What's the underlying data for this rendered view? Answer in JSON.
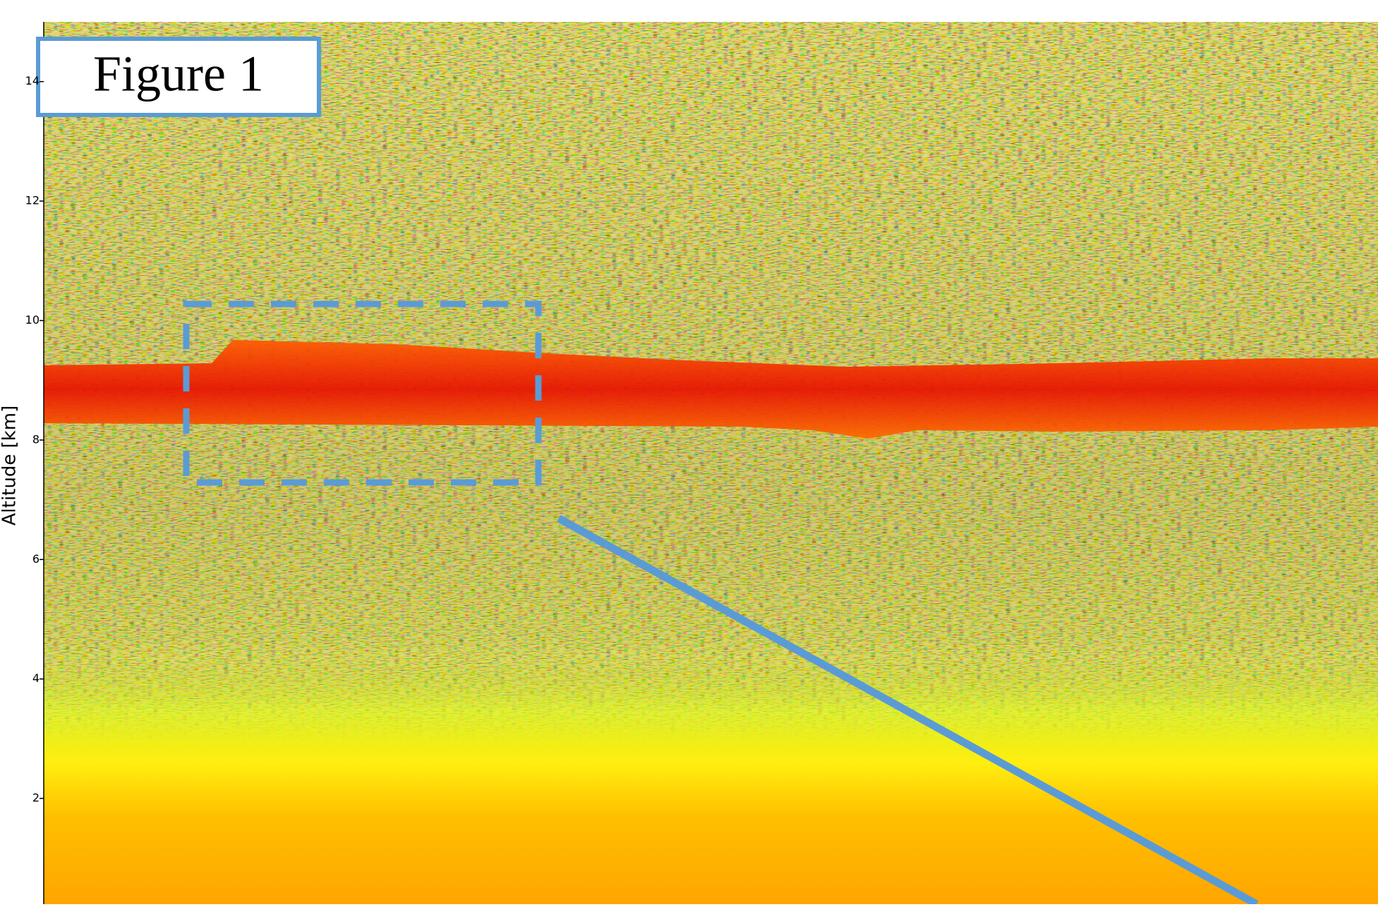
{
  "chart_data": {
    "type": "heatmap",
    "annotation": "Figure 1",
    "y_label": "Altitude [km]",
    "ylim": [
      0.23,
      15
    ],
    "yticks": [
      2,
      4,
      6,
      8,
      10,
      12,
      14
    ]
  }
}
